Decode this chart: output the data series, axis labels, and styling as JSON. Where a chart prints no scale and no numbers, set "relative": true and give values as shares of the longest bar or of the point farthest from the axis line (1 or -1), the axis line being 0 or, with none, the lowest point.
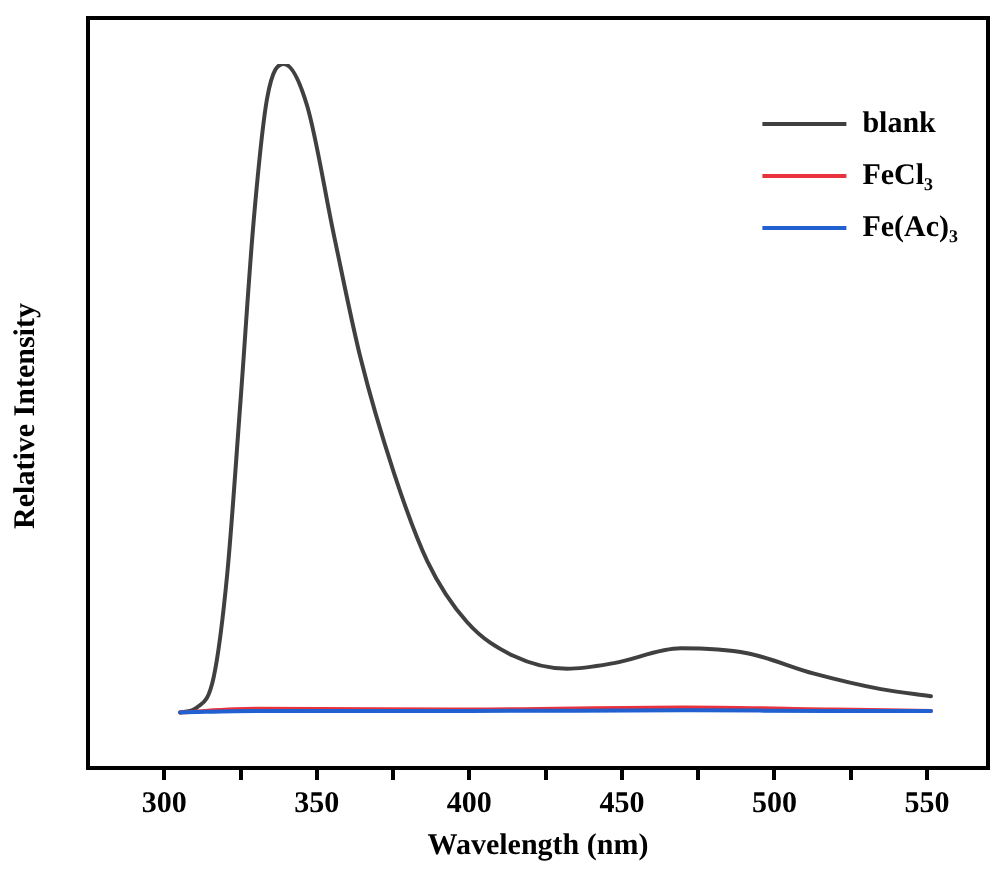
{
  "chart_data": {
    "type": "line",
    "relative": true,
    "xlabel": "Wavelength (nm)",
    "ylabel": "Relative Intensity",
    "xlim": [
      275,
      570
    ],
    "xticks": [
      300,
      {
        "value": 325,
        "label": null
      },
      350,
      {
        "value": 375,
        "label": null
      },
      400,
      {
        "value": 425,
        "label": null
      },
      450,
      {
        "value": 475,
        "label": null
      },
      500,
      {
        "value": 525,
        "label": null
      },
      550
    ],
    "legend": "top right",
    "grid": false,
    "marker": "none",
    "line_style": "solid",
    "series": [
      {
        "name": "blank",
        "color": "#404040",
        "x": [
          305.2,
          310.7,
          316.2,
          320.6,
          324.9,
          329.3,
          333.7,
          339.2,
          346.8,
          355.6,
          364.3,
          375.3,
          386.2,
          399.3,
          414.6,
          432.1,
          447.4,
          469.3,
          491.1,
          513,
          534.9,
          551.3
        ],
        "values": [
          0.079,
          0.086,
          0.129,
          0.274,
          0.516,
          0.777,
          0.951,
          1.0,
          0.941,
          0.757,
          0.583,
          0.419,
          0.294,
          0.207,
          0.159,
          0.141,
          0.149,
          0.17,
          0.163,
          0.134,
          0.112,
          0.102
        ]
      },
      {
        "name": "FeCl₃",
        "color": "#e8323c",
        "x": [
          305.2,
          330,
          400,
          470,
          520,
          551.3
        ],
        "values": [
          0.079,
          0.084,
          0.083,
          0.086,
          0.083,
          0.081
        ]
      },
      {
        "name": "Fe(Ac)₃",
        "color": "#2060d0",
        "x": [
          305.2,
          330,
          400,
          470,
          520,
          551.3
        ],
        "values": [
          0.079,
          0.081,
          0.081,
          0.082,
          0.081,
          0.081
        ]
      }
    ]
  }
}
